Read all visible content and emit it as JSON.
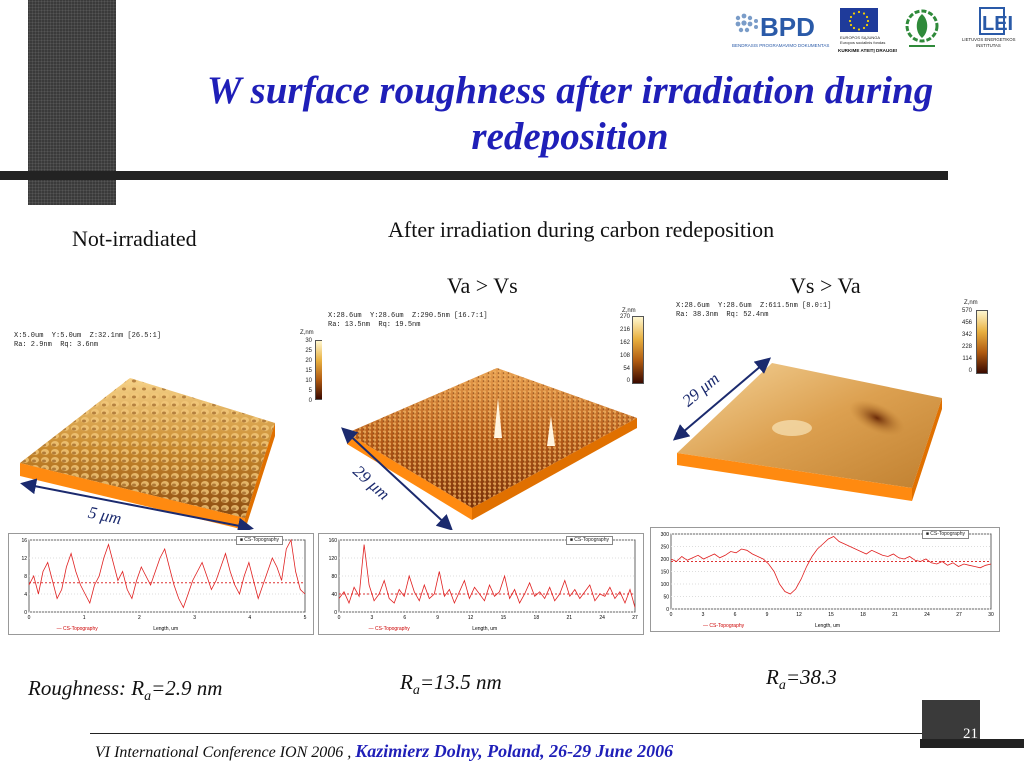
{
  "slide": {
    "title_line1": "W surface roughness after irradiation during",
    "title_line2": "redeposition",
    "heading_left": "Not-irradiated",
    "heading_right": "After  irradiation during carbon redeposition",
    "sub_va_vs": "Va  > Vs",
    "sub_vs_va": "Vs > Va",
    "slide_number": "21",
    "footer_conf": "VI International Conference ION 2006 ,",
    "footer_loc": "Kazimierz Dolny, Poland, 26-29 June 2006"
  },
  "logos": {
    "bpd_text": "BPD",
    "bpd_sub": "BENDRASIS PROGRAMAVIMO DOKUMENTAS",
    "eu_text1": "EUROPOS SĄJUNGA",
    "eu_text2": "Europos socialinis fondas",
    "eu_motto": "KURKIME ATEITĮ DRAUGE!",
    "lei_text1": "LIETUVOS ENERGETIKOS",
    "lei_text2": "INSTITUTAS"
  },
  "scans": [
    {
      "info_line1": "X:5.0um  Y:5.0um  Z:32.1nm [26.5:1]",
      "info_line2": "Ra: 2.9nm  Rq: 3.6nm",
      "cb_unit": "Z,nm",
      "cb_ticks": [
        "30",
        "25",
        "20",
        "15",
        "10",
        "5",
        "0"
      ],
      "dimension_label": "5 μm",
      "ra_prefix": "Roughness: R",
      "ra_sub": "a",
      "ra_value": "=2.9 nm",
      "profile_x_ticks": [
        "0",
        "1",
        "2",
        "3",
        "4",
        "5"
      ],
      "profile_y_ticks": [
        "16",
        "12",
        "8",
        "4",
        "0"
      ],
      "profile_mean": 6.5,
      "profile_values": [
        6,
        8,
        4,
        9,
        11,
        7,
        3,
        5,
        10,
        13,
        9,
        6,
        4,
        2,
        6,
        8,
        12,
        15,
        11,
        7,
        9,
        5,
        3,
        7,
        10,
        8,
        6,
        9,
        12,
        14,
        10,
        6,
        3,
        1,
        4,
        7,
        9,
        11,
        8,
        5,
        7,
        10,
        13,
        9,
        6,
        4,
        8,
        11,
        7,
        3,
        6,
        9,
        12,
        10,
        7,
        14,
        16,
        9,
        5,
        4
      ]
    },
    {
      "info_line1": "X:28.6um  Y:28.6um  Z:290.5nm [16.7:1]",
      "info_line2": "Ra: 13.5nm  Rq: 19.5nm",
      "cb_unit": "Z,nm",
      "cb_ticks": [
        "270",
        "216",
        "162",
        "108",
        "54",
        "0"
      ],
      "dimension_label": "29 μm",
      "ra_prefix": "R",
      "ra_sub": "a",
      "ra_value": "=13.5 nm",
      "profile_x_ticks": [
        "0",
        "3",
        "6",
        "9",
        "12",
        "15",
        "18",
        "21",
        "24",
        "27"
      ],
      "profile_y_ticks": [
        "160",
        "120",
        "80",
        "40",
        "0"
      ],
      "profile_mean": 40,
      "profile_values": [
        30,
        45,
        20,
        55,
        35,
        150,
        60,
        25,
        40,
        70,
        30,
        20,
        50,
        35,
        80,
        45,
        25,
        60,
        30,
        40,
        90,
        35,
        50,
        20,
        45,
        70,
        30,
        55,
        40,
        25,
        60,
        35,
        45,
        80,
        30,
        50,
        20,
        40,
        65,
        35,
        45,
        30,
        55,
        25,
        40,
        70,
        35,
        50,
        30,
        45,
        60,
        25,
        40,
        35,
        55,
        30,
        45,
        20,
        50,
        10
      ]
    },
    {
      "info_line1": "X:28.6um  Y:28.6um  Z:611.5nm [8.0:1]",
      "info_line2": "Ra: 38.3nm  Rq: 52.4nm",
      "cb_unit": "Z,nm",
      "cb_ticks": [
        "570",
        "456",
        "342",
        "228",
        "114",
        "0"
      ],
      "dimension_label": "29 μm",
      "ra_prefix": "R",
      "ra_sub": "a",
      "ra_value": "=38.3",
      "profile_x_ticks": [
        "0",
        "3",
        "6",
        "9",
        "12",
        "15",
        "18",
        "21",
        "24",
        "27",
        "30"
      ],
      "profile_y_ticks": [
        "300",
        "250",
        "200",
        "150",
        "100",
        "50",
        "0"
      ],
      "profile_mean": 190,
      "profile_values": [
        200,
        190,
        210,
        195,
        205,
        215,
        200,
        210,
        220,
        205,
        215,
        230,
        225,
        240,
        235,
        220,
        210,
        200,
        180,
        150,
        100,
        70,
        60,
        80,
        120,
        170,
        210,
        240,
        260,
        280,
        290,
        270,
        260,
        250,
        240,
        230,
        220,
        235,
        225,
        215,
        210,
        220,
        205,
        200,
        210,
        195,
        190,
        200,
        185,
        180,
        190,
        175,
        185,
        170,
        180,
        175,
        170,
        165,
        175,
        180
      ]
    }
  ],
  "profile_legend": "CS-Topography",
  "profile_xlabel": "Length, um"
}
